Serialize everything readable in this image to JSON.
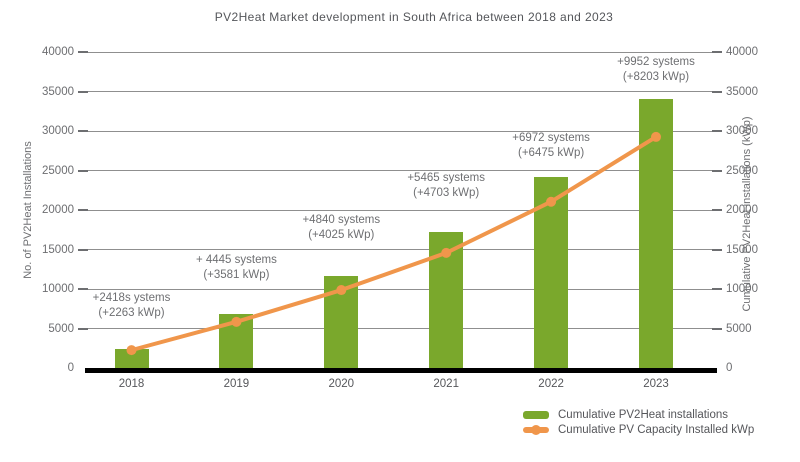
{
  "chart_data": {
    "type": "bar+line",
    "title": "PV2Heat Market development in South Africa between 2018 and 2023",
    "categories": [
      "2018",
      "2019",
      "2020",
      "2021",
      "2022",
      "2023"
    ],
    "series": [
      {
        "name": "Cumulative PV2Heat installations",
        "type": "bar",
        "color": "#7aa82c",
        "values": [
          2418,
          6863,
          11703,
          17168,
          24140,
          34092
        ]
      },
      {
        "name": "Cumulative PV Capacity Installed kWp",
        "type": "line",
        "color": "#f0964b",
        "values": [
          2263,
          5844,
          9869,
          14572,
          21047,
          29250
        ]
      }
    ],
    "annotations": [
      {
        "line1": "+2418s ystems",
        "line2": "(+2263 kWp)"
      },
      {
        "line1": "+ 4445 systems",
        "line2": "(+3581 kWp)"
      },
      {
        "line1": "+4840 systems",
        "line2": "(+4025 kWp)"
      },
      {
        "line1": "+5465 systems",
        "line2": "(+4703 kWp)"
      },
      {
        "line1": "+6972 systems",
        "line2": "(+6475 kWp)"
      },
      {
        "line1": "+9952 systems",
        "line2": "(+8203 kWp)"
      }
    ],
    "y_left": {
      "label": "No. of PV2Heat Installations",
      "min": 0,
      "max": 40000,
      "step": 5000
    },
    "y_right": {
      "label": "Cumulative PV2Heat installations (kWp)",
      "min": 0,
      "max": 40000,
      "step": 5000
    },
    "grid": true,
    "legend_position": "bottom-right",
    "axis_line_color": "#000000",
    "gridline_color": "#8f8f8f"
  }
}
